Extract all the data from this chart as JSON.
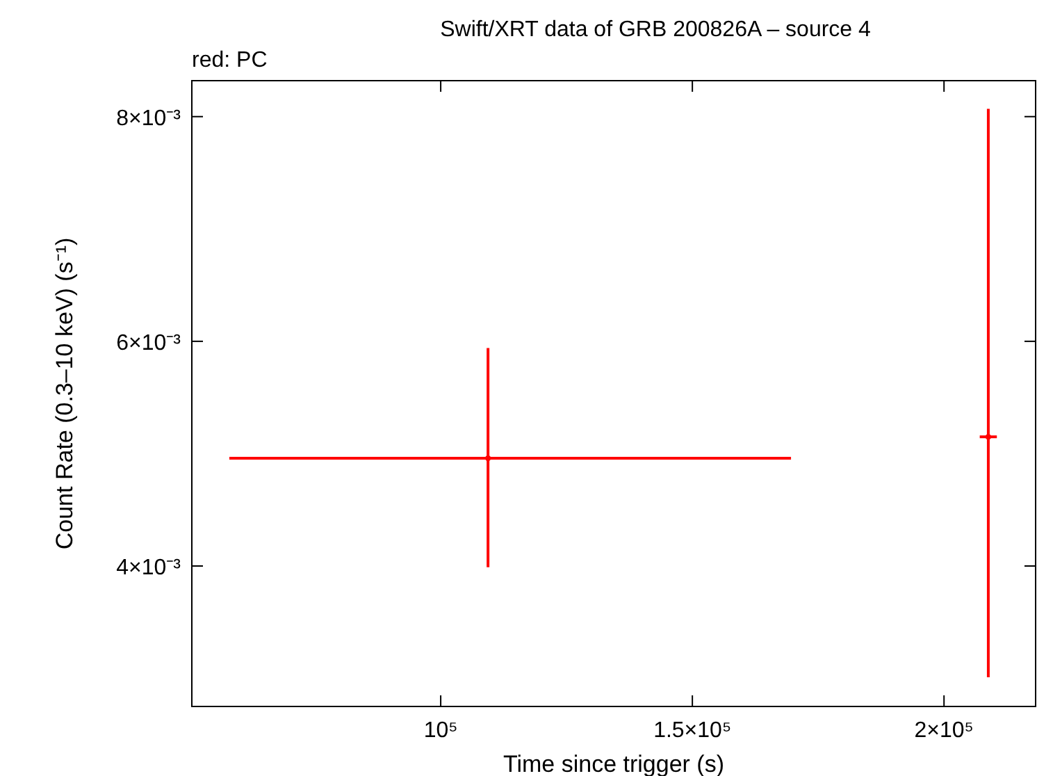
{
  "chart_data": {
    "type": "scatter",
    "title": "Swift/XRT data of GRB 200826A – source 4",
    "subtitle": "red: PC",
    "xlabel": "Time since trigger (s)",
    "ylabel": "Count Rate (0.3–10 keV) (s⁻¹)",
    "series": [
      {
        "color": "#ff0000",
        "x": [
          109400,
          208800
        ],
        "values": [
          0.00496,
          0.00515
        ],
        "errors": [
          [
            0.00399,
            0.00594
          ],
          [
            0.00301,
            0.00807
          ]
        ],
        "xerrors": [
          [
            58000,
            169600
          ],
          [
            207100,
            210500
          ]
        ]
      }
    ],
    "xlim": [
      50550,
      218200
    ],
    "ylim": [
      0.00275,
      0.00832
    ],
    "xticks": [
      {
        "value": 100000,
        "label": "10⁵"
      },
      {
        "value": 150000,
        "label": "1.5×10⁵"
      },
      {
        "value": 200000,
        "label": "2×10⁵"
      }
    ],
    "yticks": [
      {
        "value": 0.004,
        "label": "4×10⁻³"
      },
      {
        "value": 0.006,
        "label": "6×10⁻³"
      },
      {
        "value": 0.008,
        "label": "8×10⁻³"
      }
    ],
    "grid": false
  }
}
